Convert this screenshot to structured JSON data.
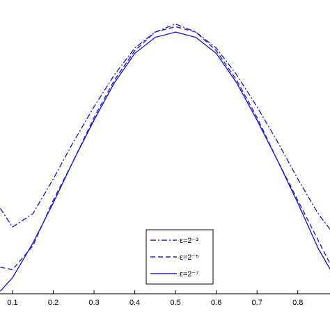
{
  "chart_data": {
    "type": "line",
    "x": [
      0.07,
      0.1,
      0.15,
      0.2,
      0.25,
      0.3,
      0.35,
      0.4,
      0.45,
      0.5,
      0.55,
      0.6,
      0.65,
      0.7,
      0.75,
      0.8,
      0.85,
      0.88
    ],
    "series": [
      {
        "name": "ε=2⁻³",
        "color": "#2020c8",
        "dash": "dashdot",
        "values": [
          0.32,
          0.25,
          0.3,
          0.43,
          0.57,
          0.7,
          0.82,
          0.92,
          0.98,
          1.01,
          0.98,
          0.92,
          0.82,
          0.7,
          0.57,
          0.43,
          0.3,
          0.24
        ]
      },
      {
        "name": "ε=2⁻⁵",
        "color": "#2020c8",
        "dash": "dashed",
        "values": [
          0.1,
          0.09,
          0.18,
          0.35,
          0.5,
          0.66,
          0.8,
          0.91,
          0.98,
          1.0,
          0.98,
          0.91,
          0.8,
          0.66,
          0.5,
          0.35,
          0.2,
          0.11
        ]
      },
      {
        "name": "ε=2⁻⁷",
        "color": "#2020c8",
        "dash": "solid",
        "values": [
          0.01,
          0.06,
          0.19,
          0.34,
          0.5,
          0.65,
          0.79,
          0.9,
          0.96,
          0.98,
          0.96,
          0.9,
          0.79,
          0.65,
          0.5,
          0.34,
          0.17,
          0.09
        ]
      }
    ],
    "xlim": [
      0.0693,
      0.879
    ],
    "xticks": [
      0.1,
      0.2,
      0.3,
      0.4,
      0.5,
      0.6,
      0.7,
      0.8
    ],
    "ylim": [
      0,
      1.1
    ],
    "legend": "lower center"
  }
}
